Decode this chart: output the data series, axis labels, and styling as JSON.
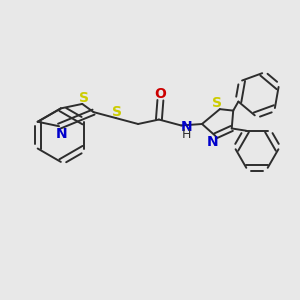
{
  "background_color": "#e8e8e8",
  "bond_color": "#2d2d2d",
  "S_color": "#cccc00",
  "N_color": "#0000cc",
  "O_color": "#cc0000",
  "C_color": "#2d2d2d",
  "line_width": 1.4,
  "font_size": 9,
  "fig_size": [
    3.0,
    3.0
  ],
  "dpi": 100,
  "xlim": [
    0,
    10
  ],
  "ylim": [
    0,
    10
  ]
}
